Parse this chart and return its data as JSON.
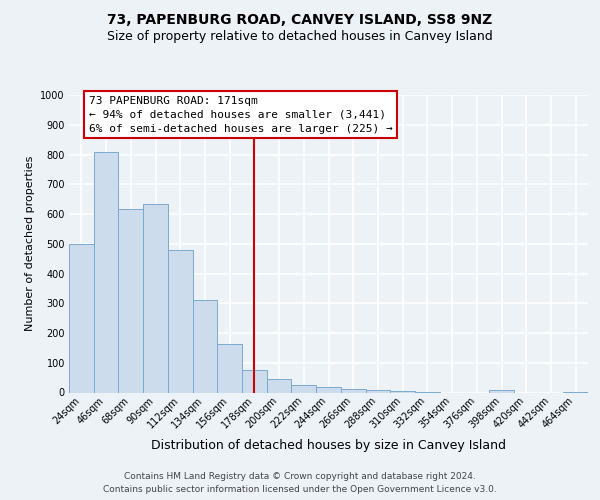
{
  "title": "73, PAPENBURG ROAD, CANVEY ISLAND, SS8 9NZ",
  "subtitle": "Size of property relative to detached houses in Canvey Island",
  "xlabel": "Distribution of detached houses by size in Canvey Island",
  "ylabel": "Number of detached properties",
  "bar_color": "#ccdcec",
  "bar_edge_color": "#7aaacf",
  "categories": [
    "24sqm",
    "46sqm",
    "68sqm",
    "90sqm",
    "112sqm",
    "134sqm",
    "156sqm",
    "178sqm",
    "200sqm",
    "222sqm",
    "244sqm",
    "266sqm",
    "288sqm",
    "310sqm",
    "332sqm",
    "354sqm",
    "376sqm",
    "398sqm",
    "420sqm",
    "442sqm",
    "464sqm"
  ],
  "values": [
    500,
    808,
    617,
    632,
    478,
    310,
    163,
    75,
    47,
    25,
    18,
    12,
    8,
    5,
    3,
    0,
    0,
    8,
    0,
    0,
    3
  ],
  "vline_x_index": 7,
  "vline_color": "#cc0000",
  "annotation_line1": "73 PAPENBURG ROAD: 171sqm",
  "annotation_line2": "← 94% of detached houses are smaller (3,441)",
  "annotation_line3": "6% of semi-detached houses are larger (225) →",
  "annotation_box_facecolor": "#ffffff",
  "annotation_box_edgecolor": "#cc0000",
  "ylim": [
    0,
    1000
  ],
  "yticks": [
    0,
    100,
    200,
    300,
    400,
    500,
    600,
    700,
    800,
    900,
    1000
  ],
  "footer1": "Contains HM Land Registry data © Crown copyright and database right 2024.",
  "footer2": "Contains public sector information licensed under the Open Government Licence v3.0.",
  "background_color": "#edf2f7",
  "grid_color": "#ffffff",
  "title_fontsize": 10,
  "subtitle_fontsize": 9,
  "ylabel_fontsize": 8,
  "xlabel_fontsize": 9,
  "tick_fontsize": 7,
  "footer_fontsize": 6.5
}
